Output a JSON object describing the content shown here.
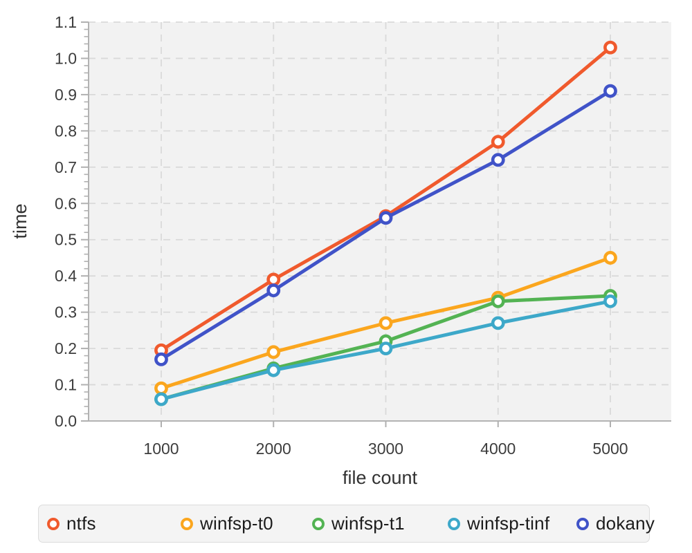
{
  "chart_data": {
    "type": "line",
    "xlabel": "file count",
    "ylabel": "time",
    "x": [
      1000,
      2000,
      3000,
      4000,
      5000
    ],
    "x_tick_labels": [
      "1000",
      "2000",
      "3000",
      "4000",
      "5000"
    ],
    "y_tick_labels": [
      "0.0",
      "0.1",
      "0.2",
      "0.3",
      "0.4",
      "0.5",
      "0.6",
      "0.7",
      "0.8",
      "0.9",
      "1.0",
      "1.1"
    ],
    "ylim": [
      0,
      1.1
    ],
    "y_minor_step": 0.02,
    "grid": "dashed",
    "legend_position": "bottom",
    "series": [
      {
        "name": "ntfs",
        "color": "#f05a2d",
        "values": [
          0.195,
          0.39,
          0.565,
          0.77,
          1.03
        ]
      },
      {
        "name": "winfsp-t0",
        "color": "#fba61e",
        "values": [
          0.09,
          0.19,
          0.27,
          0.34,
          0.45
        ]
      },
      {
        "name": "winfsp-t1",
        "color": "#53b353",
        "values": [
          0.06,
          0.145,
          0.22,
          0.33,
          0.345
        ]
      },
      {
        "name": "winfsp-tinf",
        "color": "#3da8c9",
        "values": [
          0.06,
          0.14,
          0.2,
          0.27,
          0.33
        ]
      },
      {
        "name": "dokany",
        "color": "#4053c8",
        "values": [
          0.17,
          0.36,
          0.56,
          0.72,
          0.91
        ]
      }
    ]
  },
  "style": {
    "plot_bg": "#f2f2f2",
    "grid_color": "#d9d9d9",
    "axis_color": "#b3b3b3",
    "tick_color": "#b0b0b0",
    "tick_text_color": "#3d3d3d",
    "axis_label_color": "#333333",
    "marker_fill": "#ffffff"
  }
}
